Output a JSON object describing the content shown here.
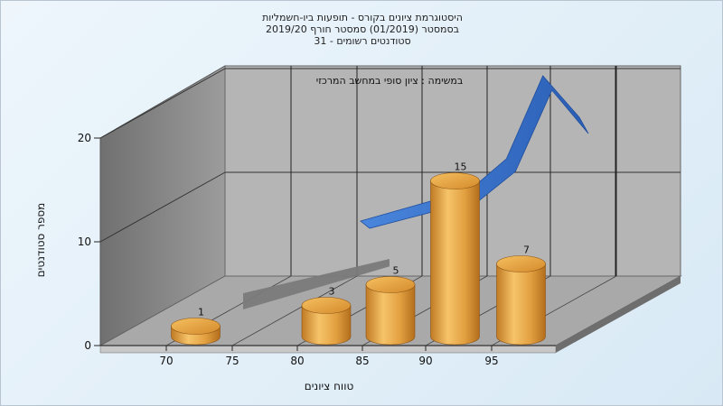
{
  "title_lines": [
    "היסטוגרמת ציונים בקורס - תופעות ביו-חשמליות",
    "בסמסטר  (01/2019)  סמסטר חורף 2019/20",
    "סטודנטים רשומים - 31"
  ],
  "chart_data": {
    "type": "bar",
    "subtitle": "במשימה : ציון סופי במחשב המרכזי",
    "xlabel": "טווח ציונים",
    "ylabel": "מספר סטודנטים",
    "ylim": [
      0,
      20
    ],
    "y_ticks": [
      "0",
      "10",
      "20"
    ],
    "x_ticks": [
      "70",
      "75",
      "80",
      "85",
      "90",
      "95"
    ],
    "categories": [
      "70-75",
      "80-85",
      "85-90",
      "90-95",
      "95-100"
    ],
    "values": [
      1,
      3,
      5,
      15,
      7
    ],
    "data_labels": [
      "1",
      "3",
      "5",
      "15",
      "7"
    ],
    "overlays": [
      {
        "type": "line",
        "values": [
          6,
          7,
          8,
          9,
          12,
          20,
          16
        ]
      },
      {
        "type": "area",
        "values": [
          3,
          4,
          5,
          6,
          7
        ]
      }
    ],
    "colors": {
      "bar": "#e0a040",
      "curve": "#2e66bb",
      "plane": "#7a7a7a",
      "back_wall": "#b4b4b4",
      "side_wall": "#8c8c8c",
      "floor": "#aaaaaa"
    }
  }
}
